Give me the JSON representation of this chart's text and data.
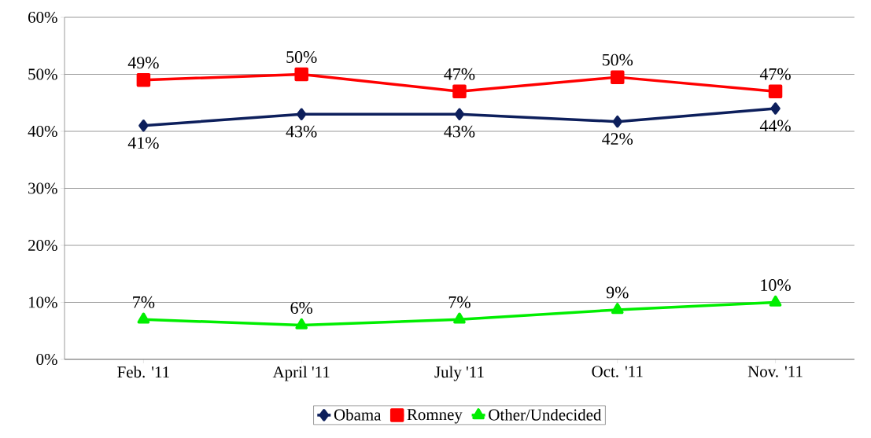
{
  "chart_data": {
    "type": "line",
    "categories": [
      "Feb. '11",
      "April '11",
      "July '11",
      "Oct. '11",
      "Nov. '11"
    ],
    "series": [
      {
        "name": "Obama",
        "color": "#0d1f5c",
        "marker": "diamond",
        "values": [
          41,
          43,
          43,
          41.7,
          44
        ],
        "value_labels": [
          "41%",
          "43%",
          "43%",
          "42%",
          "44%"
        ]
      },
      {
        "name": "Romney",
        "color": "#ff0000",
        "marker": "square",
        "values": [
          49,
          50,
          47,
          49.5,
          47
        ],
        "value_labels": [
          "49%",
          "50%",
          "47%",
          "50%",
          "47%"
        ]
      },
      {
        "name": "Other/Undecided",
        "color": "#00ee00",
        "marker": "triangle",
        "values": [
          7,
          6,
          7,
          8.7,
          10
        ],
        "value_labels": [
          "7%",
          "6%",
          "7%",
          "9%",
          "10%"
        ]
      }
    ],
    "ylim": [
      0,
      60
    ],
    "yticks": [
      {
        "value": 0,
        "label": "0%"
      },
      {
        "value": 10,
        "label": "10%"
      },
      {
        "value": 20,
        "label": "20%"
      },
      {
        "value": 30,
        "label": "30%"
      },
      {
        "value": 40,
        "label": "40%"
      },
      {
        "value": 50,
        "label": "50%"
      },
      {
        "value": 60,
        "label": "60%"
      }
    ],
    "grid": "y",
    "legend": "bottom",
    "line_style": "solid"
  }
}
